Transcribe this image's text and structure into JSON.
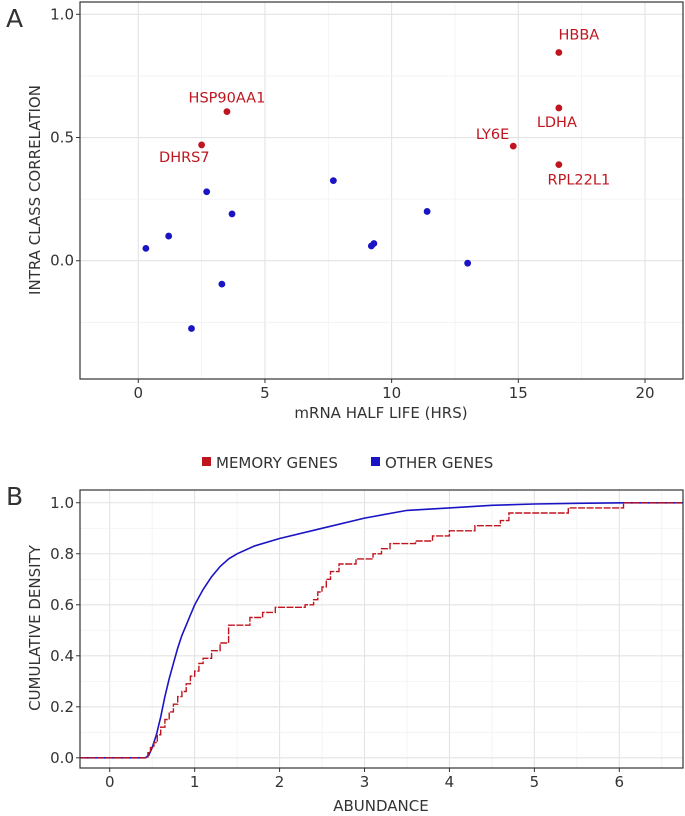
{
  "colors": {
    "memory": "#c0151f",
    "other": "#1a14c4",
    "grid_major": "#e3e3e3",
    "grid_minor": "#f1f1f1",
    "axis": "#333333",
    "text": "#333333"
  },
  "panels": {
    "a": {
      "label": "A",
      "xlabel": "mRNA HALF LIFE (HRS)",
      "ylabel": "INTRA CLASS CORRELATION",
      "xticks": [
        "0",
        "5",
        "10",
        "15",
        "20"
      ],
      "yticks": [
        "0.0",
        "0.5",
        "1.0"
      ]
    },
    "b": {
      "label": "B",
      "xlabel": "ABUNDANCE",
      "ylabel": "CUMULATIVE DENSITY",
      "xticks": [
        "0",
        "1",
        "2",
        "3",
        "4",
        "5",
        "6"
      ],
      "yticks": [
        "0.0",
        "0.2",
        "0.4",
        "0.6",
        "0.8",
        "1.0"
      ]
    }
  },
  "legend": {
    "memory_label": "MEMORY GENES",
    "other_label": "OTHER GENES"
  },
  "chart_data": [
    {
      "type": "scatter",
      "panel": "A",
      "xlabel": "mRNA HALF LIFE (HRS)",
      "ylabel": "INTRA CLASS CORRELATION",
      "xlim": [
        -2.3,
        21.5
      ],
      "ylim": [
        -0.48,
        1.05
      ],
      "xticks": [
        0,
        5,
        10,
        15,
        20
      ],
      "yticks": [
        0.0,
        0.5,
        1.0
      ],
      "series": [
        {
          "name": "MEMORY GENES",
          "points": [
            {
              "x": 2.5,
              "y": 0.47,
              "label": "DHRS7"
            },
            {
              "x": 3.5,
              "y": 0.605,
              "label": "HSP90AA1"
            },
            {
              "x": 14.8,
              "y": 0.465,
              "label": "LY6E"
            },
            {
              "x": 16.6,
              "y": 0.845,
              "label": "HBBA"
            },
            {
              "x": 16.6,
              "y": 0.62,
              "label": "LDHA"
            },
            {
              "x": 16.6,
              "y": 0.39,
              "label": "RPL22L1"
            }
          ]
        },
        {
          "name": "OTHER GENES",
          "points": [
            {
              "x": 0.3,
              "y": 0.05
            },
            {
              "x": 1.2,
              "y": 0.1
            },
            {
              "x": 2.1,
              "y": -0.275
            },
            {
              "x": 2.7,
              "y": 0.28
            },
            {
              "x": 3.3,
              "y": -0.095
            },
            {
              "x": 3.7,
              "y": 0.19
            },
            {
              "x": 7.7,
              "y": 0.325
            },
            {
              "x": 9.2,
              "y": 0.06
            },
            {
              "x": 9.3,
              "y": 0.07
            },
            {
              "x": 11.4,
              "y": 0.2
            },
            {
              "x": 13.0,
              "y": -0.01
            }
          ]
        }
      ]
    },
    {
      "type": "line",
      "panel": "B",
      "xlabel": "ABUNDANCE",
      "ylabel": "CUMULATIVE DENSITY",
      "xlim": [
        -0.35,
        6.75
      ],
      "ylim": [
        -0.04,
        1.05
      ],
      "xticks": [
        0,
        1,
        2,
        3,
        4,
        5,
        6
      ],
      "yticks": [
        0.0,
        0.2,
        0.4,
        0.6,
        0.8,
        1.0
      ],
      "series": [
        {
          "name": "OTHER GENES",
          "step": false,
          "points": [
            [
              -0.35,
              0
            ],
            [
              0.42,
              0
            ],
            [
              0.46,
              0.01
            ],
            [
              0.5,
              0.04
            ],
            [
              0.55,
              0.09
            ],
            [
              0.6,
              0.16
            ],
            [
              0.65,
              0.24
            ],
            [
              0.7,
              0.31
            ],
            [
              0.75,
              0.37
            ],
            [
              0.8,
              0.43
            ],
            [
              0.85,
              0.48
            ],
            [
              0.9,
              0.52
            ],
            [
              0.95,
              0.56
            ],
            [
              1.0,
              0.6
            ],
            [
              1.1,
              0.66
            ],
            [
              1.2,
              0.71
            ],
            [
              1.3,
              0.75
            ],
            [
              1.4,
              0.78
            ],
            [
              1.5,
              0.8
            ],
            [
              1.7,
              0.83
            ],
            [
              2.0,
              0.86
            ],
            [
              2.5,
              0.9
            ],
            [
              3.0,
              0.94
            ],
            [
              3.5,
              0.97
            ],
            [
              4.0,
              0.98
            ],
            [
              4.5,
              0.99
            ],
            [
              5.0,
              0.995
            ],
            [
              5.5,
              0.998
            ],
            [
              6.05,
              1.0
            ],
            [
              6.75,
              1.0
            ]
          ]
        },
        {
          "name": "MEMORY GENES",
          "step": true,
          "points": [
            [
              -0.35,
              0
            ],
            [
              0.42,
              0
            ],
            [
              0.45,
              0.02
            ],
            [
              0.48,
              0.04
            ],
            [
              0.52,
              0.06
            ],
            [
              0.56,
              0.09
            ],
            [
              0.6,
              0.12
            ],
            [
              0.65,
              0.15
            ],
            [
              0.7,
              0.18
            ],
            [
              0.75,
              0.21
            ],
            [
              0.8,
              0.24
            ],
            [
              0.85,
              0.26
            ],
            [
              0.9,
              0.29
            ],
            [
              0.95,
              0.32
            ],
            [
              1.0,
              0.34
            ],
            [
              1.05,
              0.37
            ],
            [
              1.1,
              0.39
            ],
            [
              1.2,
              0.42
            ],
            [
              1.3,
              0.45
            ],
            [
              1.4,
              0.52
            ],
            [
              1.65,
              0.55
            ],
            [
              1.8,
              0.57
            ],
            [
              1.95,
              0.59
            ],
            [
              2.3,
              0.6
            ],
            [
              2.4,
              0.62
            ],
            [
              2.45,
              0.65
            ],
            [
              2.5,
              0.67
            ],
            [
              2.55,
              0.7
            ],
            [
              2.6,
              0.73
            ],
            [
              2.7,
              0.76
            ],
            [
              2.9,
              0.78
            ],
            [
              3.1,
              0.8
            ],
            [
              3.2,
              0.82
            ],
            [
              3.3,
              0.84
            ],
            [
              3.6,
              0.85
            ],
            [
              3.8,
              0.87
            ],
            [
              4.0,
              0.89
            ],
            [
              4.3,
              0.91
            ],
            [
              4.6,
              0.93
            ],
            [
              4.7,
              0.96
            ],
            [
              5.4,
              0.98
            ],
            [
              6.05,
              1.0
            ],
            [
              6.75,
              1.0
            ]
          ]
        }
      ]
    }
  ]
}
